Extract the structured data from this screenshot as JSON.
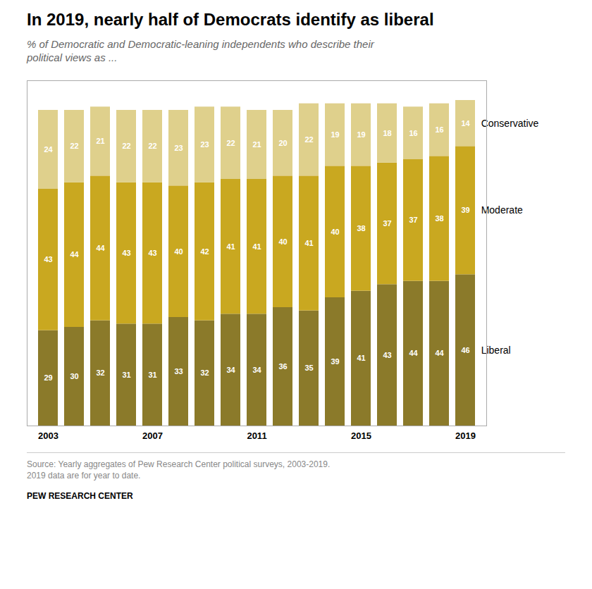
{
  "chart_data": {
    "type": "bar",
    "title": "In 2019, nearly half of Democrats identify as liberal",
    "subtitle": "% of Democratic and Democratic-leaning independents who describe their\npolitical views as ...",
    "source": "Source: Yearly aggregates of Pew Research Center political surveys, 2003-2019.\n2019 data are for year to date.",
    "brand": "PEW RESEARCH CENTER",
    "categories": [
      "2003",
      null,
      null,
      null,
      "2007",
      null,
      null,
      null,
      "2011",
      null,
      null,
      null,
      "2015",
      null,
      null,
      null,
      "2019"
    ],
    "series": [
      {
        "name": "Liberal",
        "color": "#8B7A2A",
        "values": [
          29,
          30,
          32,
          31,
          31,
          33,
          32,
          34,
          34,
          36,
          35,
          39,
          41,
          43,
          44,
          44,
          46
        ]
      },
      {
        "name": "Moderate",
        "color": "#C9A820",
        "values": [
          43,
          44,
          44,
          43,
          43,
          40,
          42,
          41,
          41,
          40,
          41,
          40,
          38,
          37,
          37,
          38,
          39
        ]
      },
      {
        "name": "Conservative",
        "color": "#DFD08C",
        "values": [
          24,
          22,
          21,
          22,
          22,
          23,
          23,
          22,
          21,
          20,
          22,
          19,
          19,
          18,
          16,
          16,
          14
        ]
      }
    ],
    "ylim": [
      0,
      105
    ],
    "stacked": true,
    "data_labels": true,
    "legend": "right",
    "grid": false,
    "tick_labels": "x"
  }
}
